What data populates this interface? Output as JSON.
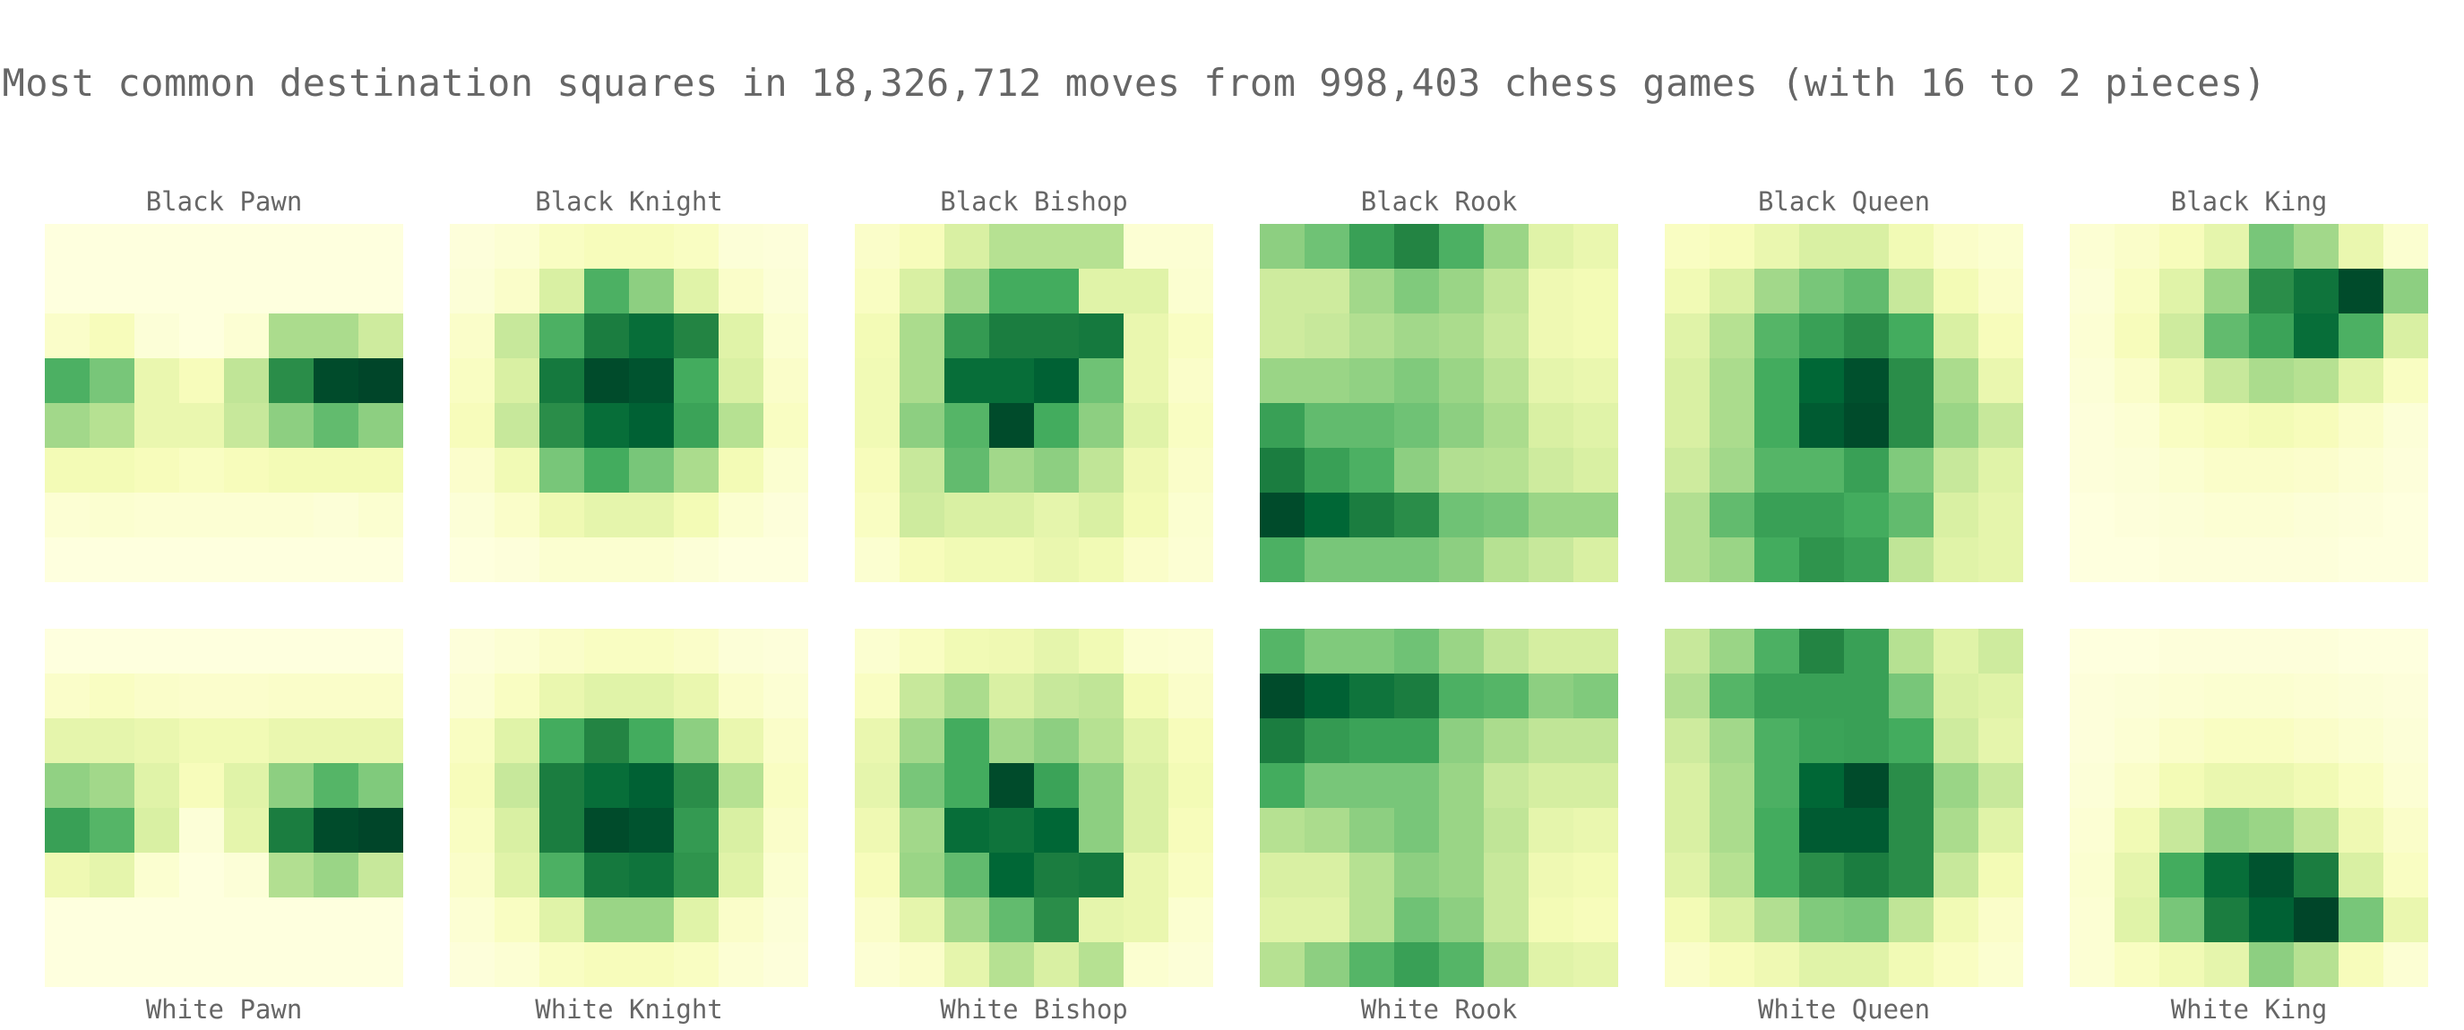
{
  "chart_data": {
    "type": "heatmap",
    "title": "Most common destination squares in 18,326,712 moves from 998,403 chess games (with 16 to 2 pieces)",
    "colormap": "YlGn",
    "panels": [
      {
        "title": "Black Pawn",
        "row": "top",
        "values": [
          [
            0.02,
            0.02,
            0.02,
            0.02,
            0.02,
            0.02,
            0.02,
            0.02
          ],
          [
            0.02,
            0.02,
            0.02,
            0.02,
            0.02,
            0.02,
            0.02,
            0.02
          ],
          [
            0.08,
            0.12,
            0.04,
            0.02,
            0.05,
            0.38,
            0.38,
            0.28
          ],
          [
            0.6,
            0.5,
            0.18,
            0.12,
            0.32,
            0.72,
            0.98,
            1.0
          ],
          [
            0.4,
            0.35,
            0.18,
            0.18,
            0.3,
            0.45,
            0.55,
            0.45
          ],
          [
            0.14,
            0.14,
            0.12,
            0.1,
            0.12,
            0.14,
            0.14,
            0.14
          ],
          [
            0.05,
            0.06,
            0.05,
            0.05,
            0.05,
            0.05,
            0.04,
            0.06
          ],
          [
            0.02,
            0.02,
            0.02,
            0.02,
            0.02,
            0.02,
            0.02,
            0.02
          ]
        ]
      },
      {
        "title": "Black Knight",
        "row": "top",
        "values": [
          [
            0.03,
            0.05,
            0.1,
            0.12,
            0.12,
            0.1,
            0.04,
            0.03
          ],
          [
            0.04,
            0.08,
            0.25,
            0.6,
            0.45,
            0.22,
            0.08,
            0.04
          ],
          [
            0.08,
            0.3,
            0.6,
            0.78,
            0.85,
            0.75,
            0.22,
            0.06
          ],
          [
            0.1,
            0.25,
            0.8,
            0.98,
            0.95,
            0.62,
            0.25,
            0.08
          ],
          [
            0.12,
            0.3,
            0.72,
            0.85,
            0.9,
            0.65,
            0.35,
            0.1
          ],
          [
            0.07,
            0.15,
            0.5,
            0.62,
            0.5,
            0.38,
            0.14,
            0.06
          ],
          [
            0.04,
            0.08,
            0.16,
            0.2,
            0.2,
            0.14,
            0.06,
            0.03
          ],
          [
            0.02,
            0.03,
            0.06,
            0.06,
            0.06,
            0.04,
            0.02,
            0.02
          ]
        ]
      },
      {
        "title": "Black Bishop",
        "row": "top",
        "values": [
          [
            0.08,
            0.12,
            0.25,
            0.35,
            0.35,
            0.35,
            0.05,
            0.05
          ],
          [
            0.1,
            0.25,
            0.4,
            0.62,
            0.62,
            0.22,
            0.22,
            0.06
          ],
          [
            0.14,
            0.38,
            0.68,
            0.78,
            0.78,
            0.8,
            0.18,
            0.1
          ],
          [
            0.15,
            0.38,
            0.85,
            0.85,
            0.9,
            0.52,
            0.18,
            0.08
          ],
          [
            0.15,
            0.45,
            0.58,
            0.98,
            0.62,
            0.45,
            0.22,
            0.1
          ],
          [
            0.12,
            0.3,
            0.55,
            0.4,
            0.45,
            0.32,
            0.16,
            0.08
          ],
          [
            0.1,
            0.28,
            0.25,
            0.25,
            0.2,
            0.25,
            0.14,
            0.06
          ],
          [
            0.06,
            0.12,
            0.15,
            0.15,
            0.18,
            0.15,
            0.08,
            0.05
          ]
        ]
      },
      {
        "title": "Black Rook",
        "row": "top",
        "values": [
          [
            0.45,
            0.52,
            0.66,
            0.75,
            0.6,
            0.42,
            0.22,
            0.18
          ],
          [
            0.28,
            0.28,
            0.4,
            0.48,
            0.42,
            0.32,
            0.16,
            0.14
          ],
          [
            0.28,
            0.3,
            0.36,
            0.4,
            0.38,
            0.3,
            0.16,
            0.14
          ],
          [
            0.42,
            0.42,
            0.44,
            0.48,
            0.42,
            0.34,
            0.2,
            0.18
          ],
          [
            0.66,
            0.55,
            0.55,
            0.52,
            0.45,
            0.38,
            0.25,
            0.22
          ],
          [
            0.78,
            0.66,
            0.6,
            0.45,
            0.36,
            0.35,
            0.28,
            0.25
          ],
          [
            0.98,
            0.88,
            0.78,
            0.72,
            0.52,
            0.5,
            0.42,
            0.42
          ],
          [
            0.6,
            0.5,
            0.5,
            0.5,
            0.45,
            0.35,
            0.3,
            0.25
          ]
        ]
      },
      {
        "title": "Black Queen",
        "row": "top",
        "values": [
          [
            0.1,
            0.12,
            0.18,
            0.25,
            0.25,
            0.15,
            0.08,
            0.06
          ],
          [
            0.15,
            0.25,
            0.4,
            0.5,
            0.55,
            0.3,
            0.14,
            0.08
          ],
          [
            0.22,
            0.35,
            0.58,
            0.66,
            0.72,
            0.62,
            0.25,
            0.12
          ],
          [
            0.25,
            0.38,
            0.62,
            0.88,
            0.96,
            0.72,
            0.38,
            0.18
          ],
          [
            0.25,
            0.38,
            0.62,
            0.92,
            0.98,
            0.72,
            0.42,
            0.3
          ],
          [
            0.28,
            0.4,
            0.58,
            0.58,
            0.66,
            0.48,
            0.3,
            0.22
          ],
          [
            0.36,
            0.55,
            0.66,
            0.66,
            0.62,
            0.55,
            0.25,
            0.2
          ],
          [
            0.36,
            0.42,
            0.62,
            0.7,
            0.66,
            0.32,
            0.22,
            0.2
          ]
        ]
      },
      {
        "title": "Black King",
        "row": "top",
        "values": [
          [
            0.05,
            0.08,
            0.12,
            0.2,
            0.5,
            0.4,
            0.18,
            0.06
          ],
          [
            0.04,
            0.1,
            0.22,
            0.42,
            0.72,
            0.82,
            0.98,
            0.45
          ],
          [
            0.05,
            0.12,
            0.28,
            0.55,
            0.65,
            0.85,
            0.6,
            0.25
          ],
          [
            0.04,
            0.08,
            0.18,
            0.3,
            0.38,
            0.35,
            0.22,
            0.1
          ],
          [
            0.03,
            0.05,
            0.1,
            0.12,
            0.14,
            0.12,
            0.08,
            0.04
          ],
          [
            0.03,
            0.04,
            0.06,
            0.08,
            0.08,
            0.07,
            0.05,
            0.03
          ],
          [
            0.02,
            0.03,
            0.04,
            0.05,
            0.05,
            0.04,
            0.03,
            0.02
          ],
          [
            0.02,
            0.02,
            0.03,
            0.03,
            0.03,
            0.03,
            0.02,
            0.02
          ]
        ]
      },
      {
        "title": "White Pawn",
        "row": "bottom",
        "values": [
          [
            0.02,
            0.02,
            0.02,
            0.02,
            0.02,
            0.02,
            0.02,
            0.02
          ],
          [
            0.08,
            0.1,
            0.08,
            0.07,
            0.07,
            0.08,
            0.08,
            0.08
          ],
          [
            0.2,
            0.2,
            0.18,
            0.15,
            0.15,
            0.18,
            0.18,
            0.18
          ],
          [
            0.44,
            0.4,
            0.22,
            0.12,
            0.22,
            0.45,
            0.58,
            0.48
          ],
          [
            0.66,
            0.58,
            0.25,
            0.04,
            0.2,
            0.78,
            0.98,
            1.0
          ],
          [
            0.16,
            0.2,
            0.06,
            0.02,
            0.04,
            0.36,
            0.42,
            0.3
          ],
          [
            0.02,
            0.02,
            0.02,
            0.02,
            0.02,
            0.02,
            0.02,
            0.02
          ],
          [
            0.02,
            0.02,
            0.02,
            0.02,
            0.02,
            0.02,
            0.02,
            0.02
          ]
        ]
      },
      {
        "title": "White Knight",
        "row": "bottom",
        "values": [
          [
            0.03,
            0.05,
            0.08,
            0.1,
            0.1,
            0.08,
            0.04,
            0.03
          ],
          [
            0.05,
            0.1,
            0.18,
            0.22,
            0.22,
            0.18,
            0.08,
            0.05
          ],
          [
            0.1,
            0.22,
            0.62,
            0.75,
            0.62,
            0.45,
            0.18,
            0.08
          ],
          [
            0.12,
            0.3,
            0.78,
            0.85,
            0.9,
            0.72,
            0.35,
            0.1
          ],
          [
            0.1,
            0.25,
            0.78,
            0.98,
            0.95,
            0.68,
            0.25,
            0.08
          ],
          [
            0.08,
            0.22,
            0.6,
            0.8,
            0.82,
            0.7,
            0.22,
            0.06
          ],
          [
            0.05,
            0.1,
            0.22,
            0.42,
            0.42,
            0.22,
            0.08,
            0.04
          ],
          [
            0.03,
            0.05,
            0.1,
            0.12,
            0.12,
            0.1,
            0.05,
            0.03
          ]
        ]
      },
      {
        "title": "White Bishop",
        "row": "bottom",
        "values": [
          [
            0.06,
            0.1,
            0.15,
            0.16,
            0.2,
            0.15,
            0.06,
            0.05
          ],
          [
            0.1,
            0.3,
            0.38,
            0.25,
            0.3,
            0.32,
            0.14,
            0.08
          ],
          [
            0.18,
            0.4,
            0.62,
            0.4,
            0.45,
            0.35,
            0.22,
            0.12
          ],
          [
            0.2,
            0.5,
            0.62,
            0.98,
            0.65,
            0.45,
            0.25,
            0.14
          ],
          [
            0.16,
            0.4,
            0.85,
            0.82,
            0.88,
            0.45,
            0.25,
            0.12
          ],
          [
            0.12,
            0.42,
            0.55,
            0.88,
            0.78,
            0.8,
            0.18,
            0.1
          ],
          [
            0.08,
            0.2,
            0.4,
            0.55,
            0.72,
            0.2,
            0.18,
            0.06
          ],
          [
            0.05,
            0.08,
            0.2,
            0.35,
            0.25,
            0.35,
            0.06,
            0.04
          ]
        ]
      },
      {
        "title": "White Rook",
        "row": "bottom",
        "values": [
          [
            0.58,
            0.48,
            0.48,
            0.52,
            0.42,
            0.32,
            0.26,
            0.26
          ],
          [
            0.98,
            0.9,
            0.82,
            0.78,
            0.6,
            0.58,
            0.45,
            0.48
          ],
          [
            0.78,
            0.68,
            0.65,
            0.65,
            0.45,
            0.38,
            0.32,
            0.32
          ],
          [
            0.62,
            0.5,
            0.5,
            0.5,
            0.42,
            0.3,
            0.26,
            0.26
          ],
          [
            0.35,
            0.38,
            0.45,
            0.5,
            0.42,
            0.32,
            0.2,
            0.18
          ],
          [
            0.25,
            0.25,
            0.35,
            0.45,
            0.42,
            0.3,
            0.16,
            0.14
          ],
          [
            0.22,
            0.22,
            0.35,
            0.52,
            0.45,
            0.3,
            0.14,
            0.12
          ],
          [
            0.35,
            0.45,
            0.58,
            0.66,
            0.58,
            0.38,
            0.22,
            0.2
          ]
        ]
      },
      {
        "title": "White Queen",
        "row": "bottom",
        "values": [
          [
            0.3,
            0.42,
            0.6,
            0.75,
            0.66,
            0.35,
            0.22,
            0.28
          ],
          [
            0.36,
            0.58,
            0.66,
            0.66,
            0.66,
            0.5,
            0.25,
            0.22
          ],
          [
            0.28,
            0.4,
            0.6,
            0.65,
            0.66,
            0.62,
            0.28,
            0.2
          ],
          [
            0.25,
            0.38,
            0.6,
            0.88,
            0.98,
            0.72,
            0.42,
            0.3
          ],
          [
            0.25,
            0.38,
            0.62,
            0.92,
            0.92,
            0.72,
            0.38,
            0.22
          ],
          [
            0.22,
            0.35,
            0.62,
            0.72,
            0.78,
            0.72,
            0.3,
            0.14
          ],
          [
            0.14,
            0.25,
            0.36,
            0.48,
            0.5,
            0.32,
            0.15,
            0.08
          ],
          [
            0.08,
            0.12,
            0.16,
            0.22,
            0.22,
            0.15,
            0.1,
            0.06
          ]
        ]
      },
      {
        "title": "White King",
        "row": "bottom",
        "values": [
          [
            0.02,
            0.02,
            0.03,
            0.03,
            0.03,
            0.03,
            0.02,
            0.02
          ],
          [
            0.03,
            0.04,
            0.05,
            0.06,
            0.06,
            0.05,
            0.04,
            0.03
          ],
          [
            0.03,
            0.05,
            0.08,
            0.1,
            0.1,
            0.08,
            0.06,
            0.04
          ],
          [
            0.04,
            0.08,
            0.14,
            0.18,
            0.18,
            0.15,
            0.1,
            0.05
          ],
          [
            0.05,
            0.15,
            0.3,
            0.45,
            0.42,
            0.32,
            0.16,
            0.08
          ],
          [
            0.06,
            0.2,
            0.62,
            0.85,
            0.95,
            0.78,
            0.25,
            0.1
          ],
          [
            0.05,
            0.22,
            0.5,
            0.78,
            0.9,
            1.0,
            0.5,
            0.18
          ],
          [
            0.05,
            0.1,
            0.15,
            0.2,
            0.45,
            0.35,
            0.12,
            0.05
          ]
        ]
      }
    ]
  }
}
